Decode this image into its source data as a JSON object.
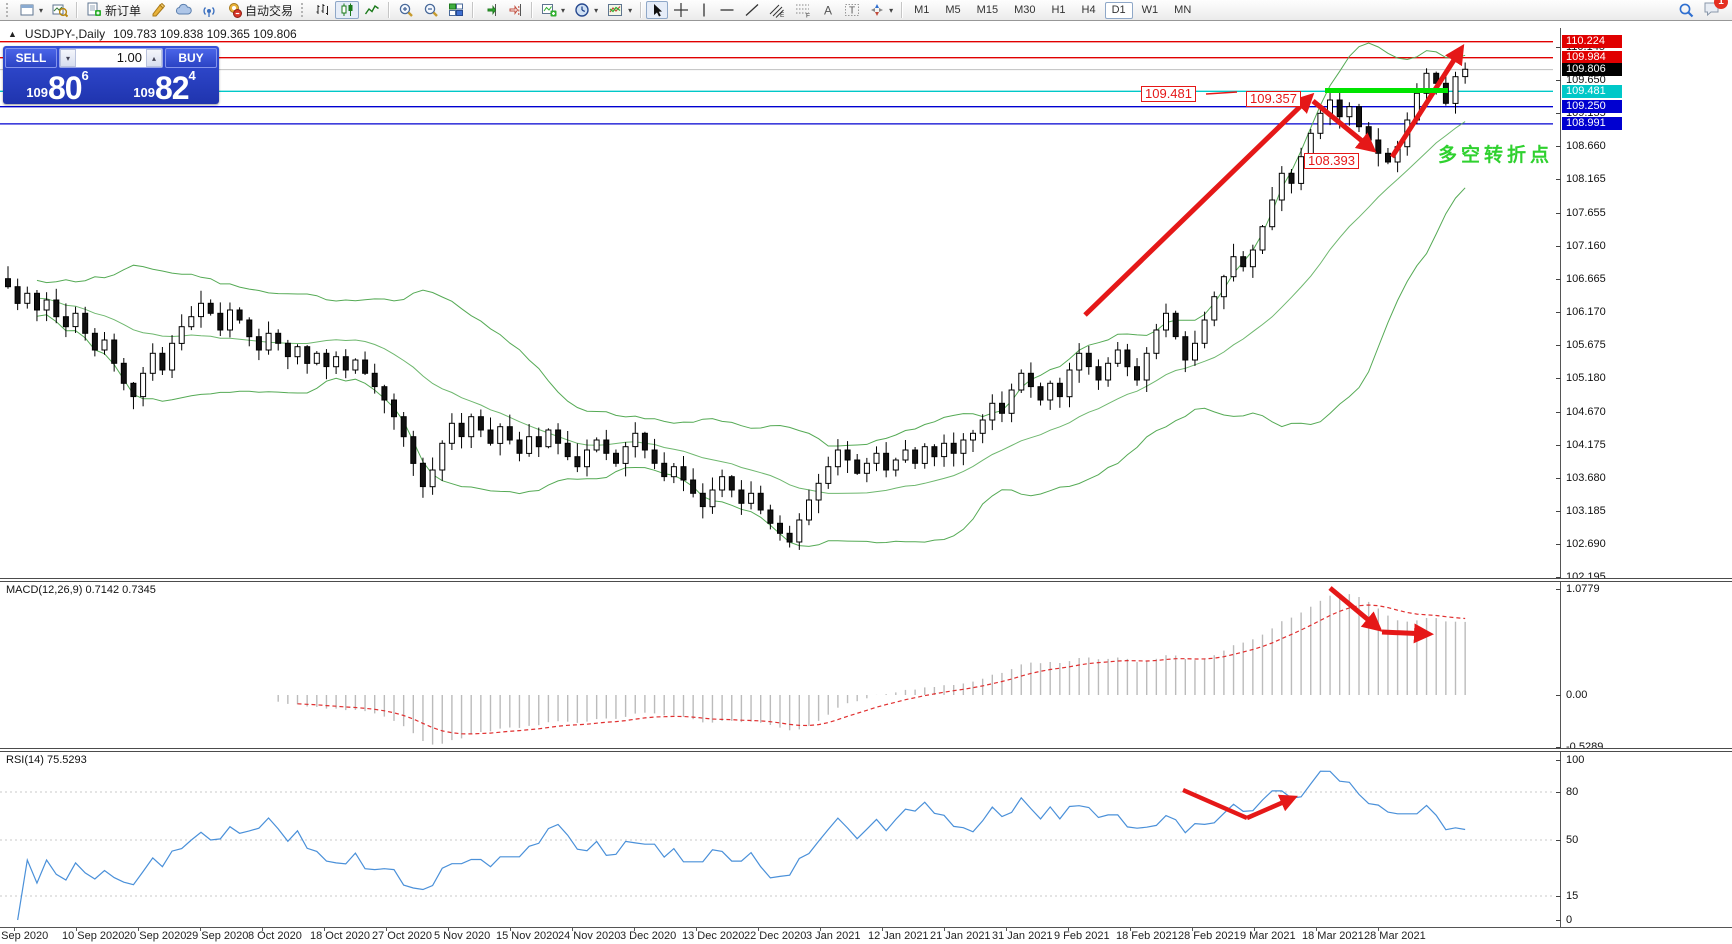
{
  "window": {
    "symbol_title": "USDJPY-,Daily",
    "ohlc_text": "109.783 109.838 109.365 109.806"
  },
  "toolbar": {
    "new_order_label": "新订单",
    "auto_trading_label": "自动交易",
    "timeframes": [
      "M1",
      "M5",
      "M15",
      "M30",
      "H1",
      "H4",
      "D1",
      "W1",
      "MN"
    ],
    "active_timeframe": "D1",
    "notification_badge": "1"
  },
  "trade_panel": {
    "sell_label": "SELL",
    "buy_label": "BUY",
    "volume": "1.00",
    "sell_price_prefix": "109",
    "sell_price_big": "80",
    "sell_price_sup": "6",
    "buy_price_prefix": "109",
    "buy_price_big": "82",
    "buy_price_sup": "4"
  },
  "price_axis": {
    "ticks": [
      "110.145",
      "109.650",
      "109.155",
      "108.660",
      "108.165",
      "107.655",
      "107.160",
      "106.665",
      "106.170",
      "105.675",
      "105.180",
      "104.670",
      "104.175",
      "103.680",
      "103.185",
      "102.690",
      "102.195"
    ],
    "flags": [
      {
        "text": "110.224",
        "bg": "#e00000"
      },
      {
        "text": "109.984",
        "bg": "#e00000"
      },
      {
        "text": "109.806",
        "bg": "#000000"
      },
      {
        "text": "109.481",
        "bg": "#00c8c8"
      },
      {
        "text": "109.250",
        "bg": "#0000d0"
      },
      {
        "text": "108.991",
        "bg": "#0000d0"
      }
    ]
  },
  "annotations": {
    "level_1": "109.481",
    "level_2": "109.357",
    "level_3": "108.393",
    "note": "多空转折点"
  },
  "macd_panel": {
    "label": "MACD(12,26,9) 0.7142 0.7345",
    "scale": [
      "1.0779",
      "0.00",
      "-0.5289"
    ]
  },
  "rsi_panel": {
    "label": "RSI(14) 75.5293",
    "scale": [
      "100",
      "80",
      "50",
      "15",
      "0"
    ]
  },
  "date_axis": [
    "1 Sep 2020",
    "10 Sep 2020",
    "20 Sep 2020",
    "29 Sep 2020",
    "8 Oct 2020",
    "18 Oct 2020",
    "27 Oct 2020",
    "5 Nov 2020",
    "15 Nov 2020",
    "24 Nov 2020",
    "3 Dec 2020",
    "13 Dec 2020",
    "22 Dec 2020",
    "3 Jan 2021",
    "12 Jan 2021",
    "21 Jan 2021",
    "31 Jan 2021",
    "9 Feb 2021",
    "18 Feb 2021",
    "28 Feb 2021",
    "9 Mar 2021",
    "18 Mar 2021",
    "28 Mar 2021"
  ],
  "chart_data": {
    "type": "candlestick",
    "symbol": "USDJPY",
    "timeframe": "Daily",
    "ohlc_display": {
      "open": 109.783,
      "high": 109.838,
      "low": 109.365,
      "close": 109.806
    },
    "y_axis_range": [
      102.195,
      110.37
    ],
    "closes": [
      106.55,
      106.3,
      106.45,
      106.2,
      106.35,
      106.1,
      105.95,
      106.15,
      105.85,
      105.6,
      105.75,
      105.4,
      105.1,
      104.9,
      105.25,
      105.55,
      105.3,
      105.7,
      105.95,
      106.1,
      106.3,
      106.15,
      105.9,
      106.2,
      106.05,
      105.8,
      105.6,
      105.85,
      105.7,
      105.5,
      105.65,
      105.4,
      105.55,
      105.35,
      105.5,
      105.3,
      105.45,
      105.25,
      105.05,
      104.85,
      104.6,
      104.3,
      103.9,
      103.55,
      103.8,
      104.2,
      104.5,
      104.3,
      104.6,
      104.4,
      104.2,
      104.45,
      104.25,
      104.05,
      104.3,
      104.15,
      104.4,
      104.2,
      104.0,
      103.85,
      104.1,
      104.25,
      104.05,
      103.9,
      104.15,
      104.35,
      104.1,
      103.9,
      103.7,
      103.85,
      103.65,
      103.45,
      103.25,
      103.5,
      103.7,
      103.5,
      103.3,
      103.45,
      103.2,
      103.0,
      102.85,
      102.72,
      103.05,
      103.35,
      103.6,
      103.85,
      104.1,
      103.95,
      103.75,
      103.9,
      104.05,
      103.8,
      103.95,
      104.1,
      103.9,
      104.15,
      104.0,
      104.2,
      104.05,
      104.25,
      104.35,
      104.55,
      104.8,
      104.65,
      105.0,
      105.25,
      105.05,
      104.85,
      105.1,
      104.9,
      105.3,
      105.55,
      105.35,
      105.15,
      105.4,
      105.6,
      105.35,
      105.15,
      105.55,
      105.9,
      106.15,
      105.8,
      105.45,
      105.7,
      106.05,
      106.4,
      106.7,
      107.0,
      106.85,
      107.1,
      107.45,
      107.85,
      108.25,
      108.1,
      108.5,
      108.85,
      109.15,
      109.35,
      109.1,
      109.25,
      108.95,
      108.75,
      108.55,
      108.42,
      108.65,
      109.05,
      109.45,
      109.75,
      109.6,
      109.3,
      109.7,
      109.81
    ],
    "indicators": {
      "bollinger": {
        "period": 20,
        "deviation": 2,
        "color": "#55aa55"
      },
      "macd": {
        "fast": 12,
        "slow": 26,
        "signal": 9,
        "display_values": "0.7142 0.7345",
        "scale_max": 1.0779,
        "scale_min": -0.5289
      },
      "rsi": {
        "period": 14,
        "display_value": 75.5293,
        "levels": [
          80,
          50,
          15
        ]
      }
    },
    "hlines": [
      {
        "price": 110.224,
        "color": "#e00000"
      },
      {
        "price": 109.984,
        "color": "#e00000"
      },
      {
        "price": 109.806,
        "color": "#c0c0c0"
      },
      {
        "price": 109.481,
        "color": "#00c8c8"
      },
      {
        "price": 109.25,
        "color": "#0000d0"
      },
      {
        "price": 108.991,
        "color": "#0000d0"
      }
    ],
    "support_zone": {
      "price": 109.481,
      "color": "#00e400"
    }
  }
}
